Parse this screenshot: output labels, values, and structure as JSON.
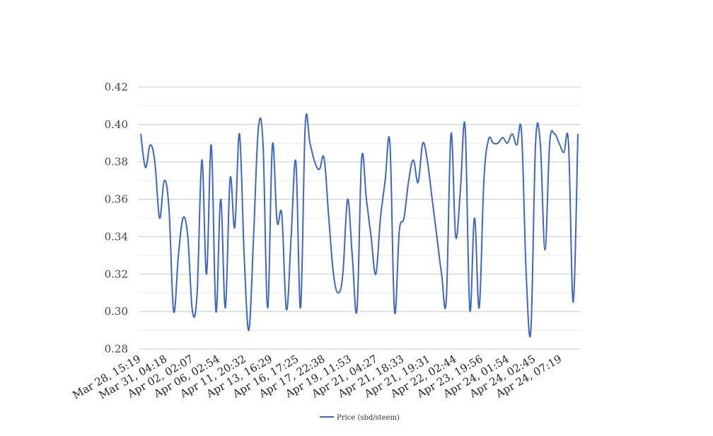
{
  "chart_data": {
    "type": "line",
    "title": "",
    "xlabel": "",
    "ylabel": "",
    "ylim": [
      0.28,
      0.42
    ],
    "y_ticks": [
      "0.28",
      "0.30",
      "0.32",
      "0.34",
      "0.36",
      "0.38",
      "0.40",
      "0.42"
    ],
    "y_tick_values": [
      0.28,
      0.3,
      0.32,
      0.34,
      0.36,
      0.38,
      0.4,
      0.42
    ],
    "grid": "horizontal major and minor lines",
    "legend_position": "bottom-center",
    "x_ticks": [
      "Mar 28, 15:19",
      "Mar 31, 04:18",
      "Apr 02, 02:07",
      "Apr 06, 02:54",
      "Apr 11, 20:32",
      "Apr 13, 16:29",
      "Apr 16, 17:25",
      "Apr 17, 22:38",
      "Apr 19, 11:53",
      "Apr 21, 04:27",
      "Apr 21, 18:33",
      "Apr 21, 19:31",
      "Apr 22, 02:44",
      "Apr 23, 19:56",
      "Apr 24, 01:54",
      "Apr 24, 02:45",
      "Apr 24, 07:19"
    ],
    "series": [
      {
        "name": "Price (sbd/steem)",
        "color": "#3f66c4",
        "values": [
          0.395,
          0.377,
          0.389,
          0.38,
          0.35,
          0.37,
          0.355,
          0.3,
          0.33,
          0.35,
          0.34,
          0.3,
          0.31,
          0.381,
          0.32,
          0.389,
          0.3,
          0.36,
          0.302,
          0.371,
          0.345,
          0.395,
          0.33,
          0.29,
          0.34,
          0.397,
          0.39,
          0.302,
          0.389,
          0.348,
          0.352,
          0.301,
          0.34,
          0.38,
          0.302,
          0.4,
          0.39,
          0.38,
          0.376,
          0.382,
          0.35,
          0.32,
          0.31,
          0.32,
          0.36,
          0.33,
          0.301,
          0.382,
          0.36,
          0.34,
          0.32,
          0.35,
          0.37,
          0.39,
          0.3,
          0.343,
          0.35,
          0.37,
          0.381,
          0.369,
          0.39,
          0.38,
          0.36,
          0.34,
          0.32,
          0.306,
          0.395,
          0.34,
          0.365,
          0.399,
          0.301,
          0.35,
          0.302,
          0.37,
          0.392,
          0.39,
          0.39,
          0.393,
          0.39,
          0.395,
          0.389,
          0.396,
          0.32,
          0.29,
          0.39,
          0.39,
          0.333,
          0.39,
          0.395,
          0.39,
          0.385,
          0.39,
          0.305,
          0.395
        ]
      }
    ]
  }
}
